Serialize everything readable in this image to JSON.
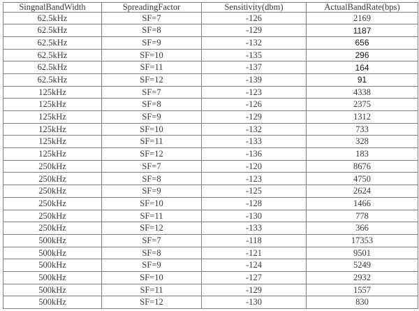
{
  "colors": {
    "border": "#7e7e7e",
    "outer_border": "#4a4a4a",
    "text": "#3a3a3a",
    "sans_text": "#151515",
    "background": "#ffffff"
  },
  "table": {
    "columns": [
      "SingnalBandWidth",
      "SpreadingFactor",
      "Sensitivity(dbm)",
      "ActualBandRate(bps)"
    ],
    "rows": [
      {
        "bandwidth": "62.5kHz",
        "spreading_factor": "SF=7",
        "sensitivity": "-126",
        "rate": "2169",
        "sans_rate": false
      },
      {
        "bandwidth": "62.5kHz",
        "spreading_factor": "SF=8",
        "sensitivity": "-129",
        "rate": "1187",
        "sans_rate": true
      },
      {
        "bandwidth": "62.5kHz",
        "spreading_factor": "SF=9",
        "sensitivity": "-132",
        "rate": "656",
        "sans_rate": true
      },
      {
        "bandwidth": "62.5kHz",
        "spreading_factor": "SF=10",
        "sensitivity": "-135",
        "rate": "296",
        "sans_rate": true
      },
      {
        "bandwidth": "62.5kHz",
        "spreading_factor": "SF=11",
        "sensitivity": "-137",
        "rate": "164",
        "sans_rate": true
      },
      {
        "bandwidth": "62.5kHz",
        "spreading_factor": "SF=12",
        "sensitivity": "-139",
        "rate": "91",
        "sans_rate": true
      },
      {
        "bandwidth": "125kHz",
        "spreading_factor": "SF=7",
        "sensitivity": "-123",
        "rate": "4338",
        "sans_rate": false
      },
      {
        "bandwidth": "125kHz",
        "spreading_factor": "SF=8",
        "sensitivity": "-126",
        "rate": "2375",
        "sans_rate": false
      },
      {
        "bandwidth": "125kHz",
        "spreading_factor": "SF=9",
        "sensitivity": "-129",
        "rate": "1312",
        "sans_rate": false
      },
      {
        "bandwidth": "125kHz",
        "spreading_factor": "SF=10",
        "sensitivity": "-132",
        "rate": "733",
        "sans_rate": false
      },
      {
        "bandwidth": "125kHz",
        "spreading_factor": "SF=11",
        "sensitivity": "-133",
        "rate": "328",
        "sans_rate": false
      },
      {
        "bandwidth": "125kHz",
        "spreading_factor": "SF=12",
        "sensitivity": "-136",
        "rate": "183",
        "sans_rate": false
      },
      {
        "bandwidth": "250kHz",
        "spreading_factor": "SF=7",
        "sensitivity": "-120",
        "rate": "8676",
        "sans_rate": false
      },
      {
        "bandwidth": "250kHz",
        "spreading_factor": "SF=8",
        "sensitivity": "-123",
        "rate": "4750",
        "sans_rate": false
      },
      {
        "bandwidth": "250kHz",
        "spreading_factor": "SF=9",
        "sensitivity": "-125",
        "rate": "2624",
        "sans_rate": false
      },
      {
        "bandwidth": "250kHz",
        "spreading_factor": "SF=10",
        "sensitivity": "-128",
        "rate": "1466",
        "sans_rate": false
      },
      {
        "bandwidth": "250kHz",
        "spreading_factor": "SF=11",
        "sensitivity": "-130",
        "rate": "778",
        "sans_rate": false
      },
      {
        "bandwidth": "250kHz",
        "spreading_factor": "SF=12",
        "sensitivity": "-133",
        "rate": "366",
        "sans_rate": false
      },
      {
        "bandwidth": "500kHz",
        "spreading_factor": "SF=7",
        "sensitivity": "-118",
        "rate": "17353",
        "sans_rate": false
      },
      {
        "bandwidth": "500kHz",
        "spreading_factor": "SF=8",
        "sensitivity": "-121",
        "rate": "9501",
        "sans_rate": false
      },
      {
        "bandwidth": "500kHz",
        "spreading_factor": "SF=9",
        "sensitivity": "-124",
        "rate": "5249",
        "sans_rate": false
      },
      {
        "bandwidth": "500kHz",
        "spreading_factor": "SF=10",
        "sensitivity": "-127",
        "rate": "2932",
        "sans_rate": false
      },
      {
        "bandwidth": "500kHz",
        "spreading_factor": "SF=11",
        "sensitivity": "-129",
        "rate": "1557",
        "sans_rate": false
      },
      {
        "bandwidth": "500kHz",
        "spreading_factor": "SF=12",
        "sensitivity": "-130",
        "rate": "830",
        "sans_rate": false
      }
    ]
  }
}
